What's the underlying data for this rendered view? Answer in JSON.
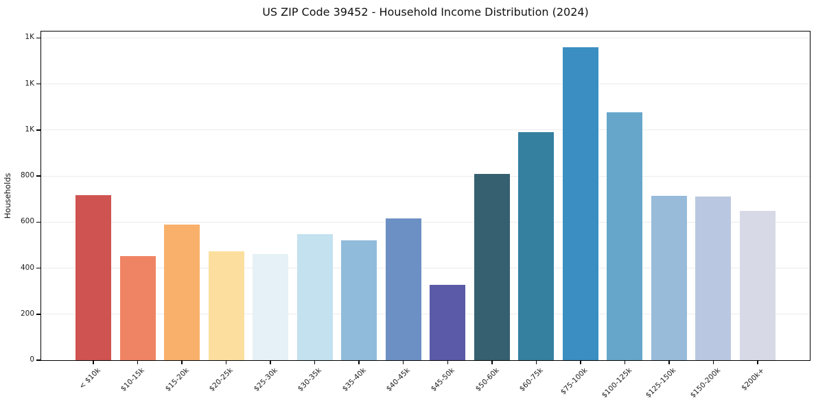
{
  "chart_data": {
    "type": "bar",
    "title": "US ZIP Code 39452 - Household Income Distribution (2024)",
    "xlabel": "",
    "ylabel": "Households",
    "categories": [
      "< $10k",
      "$10-15k",
      "$15-20k",
      "$20-25k",
      "$25-30k",
      "$30-35k",
      "$35-40k",
      "$40-45k",
      "$45-50k",
      "$50-60k",
      "$60-75k",
      "$75-100k",
      "$100-125k",
      "$125-150k",
      "$150-200k",
      "$200k+"
    ],
    "values": [
      716,
      452,
      590,
      472,
      462,
      547,
      521,
      615,
      327,
      810,
      992,
      1360,
      1078,
      715,
      710,
      650
    ],
    "bar_colors": [
      "#cf5350",
      "#ef8465",
      "#f9b06b",
      "#fcdf9f",
      "#e5f1f6",
      "#c3e1ee",
      "#91bbdb",
      "#6c90c4",
      "#5a5aa8",
      "#36606f",
      "#35809f",
      "#3a8ec1",
      "#66a6ca",
      "#97bbd9",
      "#b9c8e0",
      "#d7d9e6"
    ],
    "ylim": [
      0,
      1428
    ],
    "yticks": [
      {
        "value": 0,
        "label": "0"
      },
      {
        "value": 200,
        "label": "200"
      },
      {
        "value": 400,
        "label": "400"
      },
      {
        "value": 600,
        "label": "600"
      },
      {
        "value": 800,
        "label": "800"
      },
      {
        "value": 1000,
        "label": "1K"
      },
      {
        "value": 1200,
        "label": "1K"
      },
      {
        "value": 1400,
        "label": "1K"
      }
    ],
    "grid": "horizontal-only",
    "legend": "none",
    "x_tick_rotation": 45,
    "spine_color": "#000000",
    "gridline_color": "#ececec"
  }
}
